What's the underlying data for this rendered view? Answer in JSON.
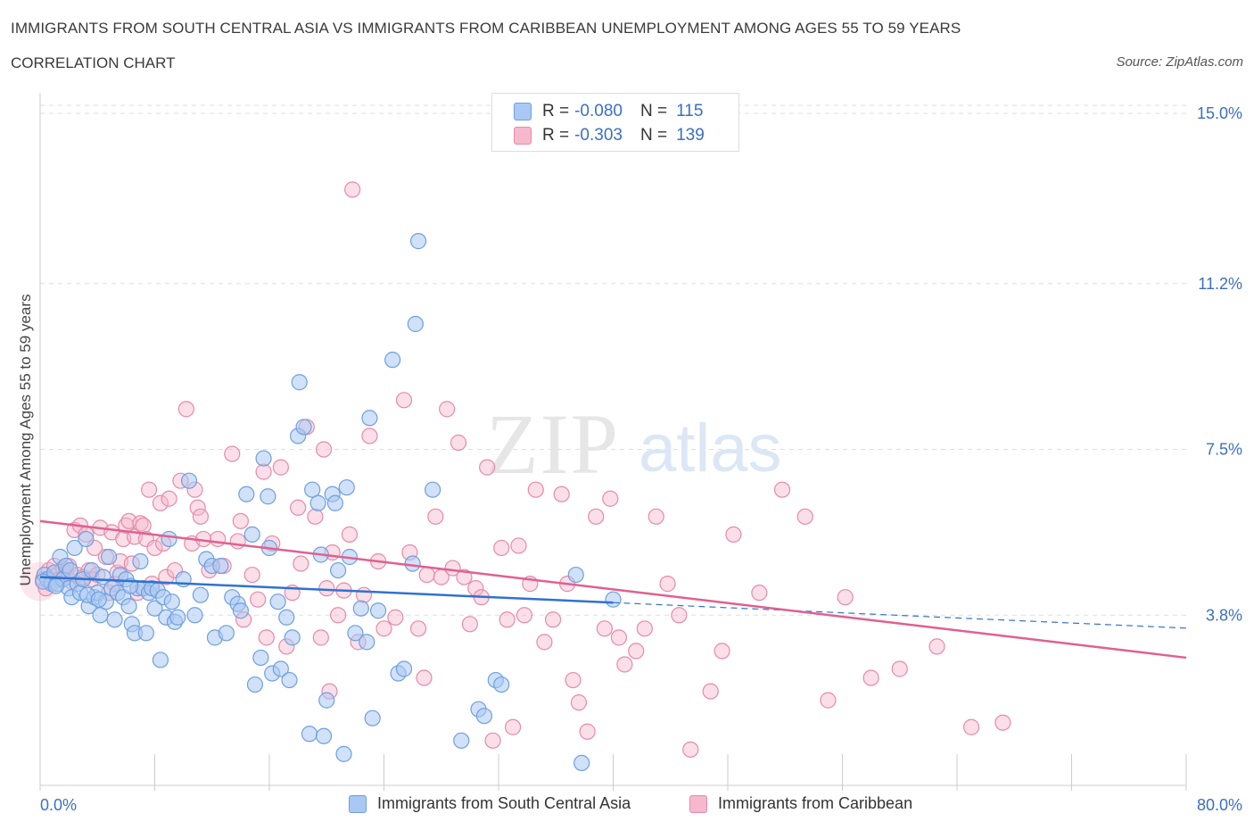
{
  "header": {
    "title": "IMMIGRANTS FROM SOUTH CENTRAL ASIA VS IMMIGRANTS FROM CARIBBEAN UNEMPLOYMENT AMONG AGES 55 TO 59 YEARS",
    "subtitle": "CORRELATION CHART",
    "source": "Source: ZipAtlas.com"
  },
  "stats": [
    {
      "r_label": "R =",
      "r_value": "-0.080",
      "n_label": "N =",
      "n_value": "115"
    },
    {
      "r_label": "R =",
      "r_value": "-0.303",
      "n_label": "N =",
      "n_value": "139"
    }
  ],
  "watermark": {
    "zip": "ZIP",
    "atlas": "atlas"
  },
  "colors": {
    "blue_fill": "#a9c8f3",
    "blue_stroke": "#6f9fe0",
    "blue_line": "#2f72d0",
    "pink_fill": "#f5b8cc",
    "pink_stroke": "#e78aa8",
    "pink_line": "#e0608f",
    "axis_text": "#3a6fc4"
  },
  "chart_data": {
    "type": "scatter",
    "title": "IMMIGRANTS FROM SOUTH CENTRAL ASIA VS IMMIGRANTS FROM CARIBBEAN UNEMPLOYMENT AMONG AGES 55 TO 59 YEARS",
    "xlabel": "",
    "ylabel": "Unemployment Among Ages 55 to 59 years",
    "xlim": [
      0,
      80
    ],
    "ylim": [
      0,
      15.3
    ],
    "x_tick_labels": [
      "0.0%",
      "80.0%"
    ],
    "y_ticks": [
      3.8,
      7.5,
      11.2,
      15.0
    ],
    "y_tick_labels": [
      "3.8%",
      "7.5%",
      "11.2%",
      "15.0%"
    ],
    "grid": true,
    "legend_position": "bottom",
    "series": [
      {
        "name": "Immigrants from South Central Asia",
        "color": "#a9c8f3",
        "trend": {
          "x": [
            0,
            40
          ],
          "y": [
            4.65,
            4.08
          ],
          "dashed_extension": {
            "x": [
              40,
              80
            ],
            "y": [
              4.08,
              3.51
            ]
          }
        },
        "points": [
          [
            0.3,
            4.7
          ],
          [
            0.5,
            4.6
          ],
          [
            0.8,
            4.5
          ],
          [
            1.0,
            4.75
          ],
          [
            1.2,
            4.5
          ],
          [
            1.4,
            5.1
          ],
          [
            1.6,
            4.6
          ],
          [
            1.8,
            4.9
          ],
          [
            2.0,
            4.4
          ],
          [
            2.2,
            4.2
          ],
          [
            2.4,
            5.3
          ],
          [
            2.6,
            4.5
          ],
          [
            2.8,
            4.3
          ],
          [
            3.0,
            4.6
          ],
          [
            3.2,
            5.5
          ],
          [
            3.4,
            4.0
          ],
          [
            3.6,
            4.8
          ],
          [
            3.8,
            4.2
          ],
          [
            4.0,
            4.3
          ],
          [
            4.2,
            3.8
          ],
          [
            4.4,
            4.65
          ],
          [
            4.6,
            4.1
          ],
          [
            4.8,
            5.1
          ],
          [
            5.0,
            4.4
          ],
          [
            5.2,
            3.7
          ],
          [
            5.4,
            4.3
          ],
          [
            5.6,
            4.7
          ],
          [
            5.8,
            4.2
          ],
          [
            6.0,
            4.6
          ],
          [
            6.2,
            4.0
          ],
          [
            6.4,
            3.6
          ],
          [
            6.6,
            3.4
          ],
          [
            6.8,
            4.4
          ],
          [
            7.0,
            5.0
          ],
          [
            7.2,
            4.4
          ],
          [
            7.4,
            3.4
          ],
          [
            7.6,
            4.3
          ],
          [
            7.8,
            4.4
          ],
          [
            8.0,
            3.95
          ],
          [
            8.2,
            4.35
          ],
          [
            8.4,
            2.8
          ],
          [
            8.6,
            4.2
          ],
          [
            8.8,
            3.75
          ],
          [
            9.0,
            5.5
          ],
          [
            9.2,
            4.1
          ],
          [
            9.4,
            3.65
          ],
          [
            9.6,
            3.75
          ],
          [
            10.0,
            4.6
          ],
          [
            10.4,
            6.8
          ],
          [
            10.8,
            3.8
          ],
          [
            11.2,
            4.25
          ],
          [
            11.6,
            5.05
          ],
          [
            12.0,
            4.9
          ],
          [
            12.2,
            3.3
          ],
          [
            12.6,
            4.9
          ],
          [
            13.0,
            3.4
          ],
          [
            13.4,
            4.2
          ],
          [
            13.8,
            4.05
          ],
          [
            14.0,
            3.9
          ],
          [
            14.4,
            6.5
          ],
          [
            14.8,
            5.6
          ],
          [
            15.0,
            2.25
          ],
          [
            15.4,
            2.85
          ],
          [
            15.6,
            7.3
          ],
          [
            15.9,
            6.45
          ],
          [
            16.0,
            5.3
          ],
          [
            16.2,
            2.5
          ],
          [
            16.6,
            4.1
          ],
          [
            16.8,
            2.6
          ],
          [
            17.2,
            3.75
          ],
          [
            17.4,
            2.35
          ],
          [
            17.6,
            3.3
          ],
          [
            18.0,
            7.8
          ],
          [
            18.1,
            9.0
          ],
          [
            18.4,
            8.0
          ],
          [
            18.8,
            1.15
          ],
          [
            19.0,
            6.6
          ],
          [
            19.4,
            6.3
          ],
          [
            19.6,
            5.15
          ],
          [
            19.8,
            1.1
          ],
          [
            20.0,
            1.9
          ],
          [
            20.4,
            6.5
          ],
          [
            20.6,
            6.3
          ],
          [
            20.8,
            4.8
          ],
          [
            21.2,
            0.7
          ],
          [
            21.4,
            6.65
          ],
          [
            21.6,
            5.1
          ],
          [
            22.0,
            3.4
          ],
          [
            22.4,
            3.95
          ],
          [
            22.8,
            3.2
          ],
          [
            23.0,
            8.2
          ],
          [
            23.2,
            1.5
          ],
          [
            23.6,
            3.9
          ],
          [
            24.6,
            9.5
          ],
          [
            25.0,
            2.5
          ],
          [
            25.4,
            2.6
          ],
          [
            26.0,
            4.95
          ],
          [
            26.2,
            10.3
          ],
          [
            26.4,
            12.15
          ],
          [
            27.4,
            6.6
          ],
          [
            29.4,
            1.0
          ],
          [
            30.6,
            1.7
          ],
          [
            31.0,
            1.55
          ],
          [
            31.8,
            2.35
          ],
          [
            32.2,
            2.25
          ],
          [
            37.4,
            4.7
          ],
          [
            37.8,
            0.5
          ],
          [
            40.0,
            4.15
          ],
          [
            0.2,
            4.55
          ],
          [
            1.1,
            4.45
          ],
          [
            2.1,
            4.8
          ],
          [
            3.3,
            4.25
          ],
          [
            4.1,
            4.15
          ],
          [
            6.3,
            4.45
          ]
        ]
      },
      {
        "name": "Immigrants from Caribbean",
        "color": "#f5b8cc",
        "trend": {
          "x": [
            0,
            80
          ],
          "y": [
            5.9,
            2.85
          ]
        },
        "points": [
          [
            0.2,
            4.6
          ],
          [
            0.4,
            4.4
          ],
          [
            0.6,
            4.8
          ],
          [
            0.8,
            4.5
          ],
          [
            1.0,
            4.9
          ],
          [
            1.2,
            4.7
          ],
          [
            1.4,
            4.6
          ],
          [
            1.6,
            4.85
          ],
          [
            1.8,
            4.75
          ],
          [
            2.0,
            4.9
          ],
          [
            2.2,
            4.55
          ],
          [
            2.4,
            5.7
          ],
          [
            2.6,
            4.7
          ],
          [
            2.8,
            5.8
          ],
          [
            3.0,
            4.65
          ],
          [
            3.2,
            5.6
          ],
          [
            3.4,
            4.8
          ],
          [
            3.6,
            4.6
          ],
          [
            3.8,
            5.3
          ],
          [
            4.0,
            4.7
          ],
          [
            4.2,
            5.75
          ],
          [
            4.6,
            5.1
          ],
          [
            4.8,
            4.3
          ],
          [
            5.0,
            5.65
          ],
          [
            5.2,
            4.5
          ],
          [
            5.4,
            4.75
          ],
          [
            5.6,
            5.0
          ],
          [
            5.8,
            5.5
          ],
          [
            6.0,
            5.8
          ],
          [
            6.2,
            5.9
          ],
          [
            6.4,
            4.95
          ],
          [
            6.6,
            5.55
          ],
          [
            6.8,
            4.3
          ],
          [
            7.0,
            5.85
          ],
          [
            7.2,
            5.8
          ],
          [
            7.4,
            5.5
          ],
          [
            7.6,
            6.6
          ],
          [
            7.8,
            4.5
          ],
          [
            8.0,
            5.3
          ],
          [
            8.4,
            6.3
          ],
          [
            8.6,
            5.4
          ],
          [
            8.8,
            4.65
          ],
          [
            9.0,
            6.4
          ],
          [
            9.4,
            4.8
          ],
          [
            9.8,
            6.8
          ],
          [
            10.2,
            8.4
          ],
          [
            10.6,
            5.4
          ],
          [
            10.8,
            6.6
          ],
          [
            11.0,
            6.2
          ],
          [
            11.2,
            6.0
          ],
          [
            11.4,
            5.5
          ],
          [
            11.8,
            4.8
          ],
          [
            12.4,
            5.5
          ],
          [
            12.8,
            4.9
          ],
          [
            13.4,
            7.4
          ],
          [
            13.8,
            5.45
          ],
          [
            14.0,
            5.9
          ],
          [
            14.2,
            3.7
          ],
          [
            14.8,
            4.7
          ],
          [
            15.2,
            4.15
          ],
          [
            15.6,
            7.0
          ],
          [
            15.8,
            3.3
          ],
          [
            16.2,
            5.4
          ],
          [
            16.8,
            7.1
          ],
          [
            17.2,
            3.1
          ],
          [
            17.6,
            4.3
          ],
          [
            18.0,
            6.2
          ],
          [
            18.2,
            4.95
          ],
          [
            18.6,
            8.0
          ],
          [
            19.2,
            6.0
          ],
          [
            19.6,
            3.3
          ],
          [
            19.8,
            7.5
          ],
          [
            20.0,
            4.4
          ],
          [
            20.2,
            2.1
          ],
          [
            20.4,
            5.2
          ],
          [
            20.8,
            3.8
          ],
          [
            21.2,
            4.35
          ],
          [
            21.6,
            5.6
          ],
          [
            22.2,
            3.2
          ],
          [
            22.6,
            4.25
          ],
          [
            23.0,
            7.8
          ],
          [
            23.6,
            5.0
          ],
          [
            24.0,
            3.5
          ],
          [
            24.8,
            3.75
          ],
          [
            25.4,
            8.6
          ],
          [
            25.8,
            5.2
          ],
          [
            26.4,
            3.5
          ],
          [
            26.8,
            2.4
          ],
          [
            27.0,
            4.7
          ],
          [
            27.6,
            6.0
          ],
          [
            28.0,
            4.65
          ],
          [
            28.4,
            8.4
          ],
          [
            28.8,
            4.85
          ],
          [
            29.2,
            7.65
          ],
          [
            29.6,
            4.65
          ],
          [
            30.0,
            3.6
          ],
          [
            30.4,
            4.4
          ],
          [
            30.8,
            4.2
          ],
          [
            31.2,
            7.1
          ],
          [
            31.6,
            1.0
          ],
          [
            32.2,
            5.3
          ],
          [
            32.6,
            3.7
          ],
          [
            33.0,
            1.3
          ],
          [
            33.4,
            5.35
          ],
          [
            33.8,
            3.8
          ],
          [
            34.2,
            4.5
          ],
          [
            34.6,
            6.6
          ],
          [
            35.2,
            3.2
          ],
          [
            35.8,
            3.7
          ],
          [
            36.4,
            6.5
          ],
          [
            36.8,
            4.5
          ],
          [
            37.2,
            2.35
          ],
          [
            37.6,
            1.85
          ],
          [
            38.2,
            1.2
          ],
          [
            38.8,
            6.0
          ],
          [
            39.4,
            3.5
          ],
          [
            39.8,
            6.4
          ],
          [
            40.4,
            3.3
          ],
          [
            40.8,
            2.7
          ],
          [
            41.6,
            3.0
          ],
          [
            42.2,
            3.5
          ],
          [
            43.0,
            6.0
          ],
          [
            43.8,
            4.5
          ],
          [
            44.6,
            3.8
          ],
          [
            45.4,
            0.8
          ],
          [
            46.8,
            2.1
          ],
          [
            47.6,
            3.0
          ],
          [
            48.4,
            5.6
          ],
          [
            50.2,
            4.3
          ],
          [
            51.8,
            6.6
          ],
          [
            53.4,
            6.0
          ],
          [
            55.0,
            1.9
          ],
          [
            56.2,
            4.2
          ],
          [
            58.0,
            2.4
          ],
          [
            60.0,
            2.6
          ],
          [
            62.6,
            3.1
          ],
          [
            65.0,
            1.3
          ],
          [
            67.2,
            1.4
          ],
          [
            21.8,
            13.3
          ]
        ]
      }
    ]
  },
  "legend": [
    {
      "label": "Immigrants from South Central Asia"
    },
    {
      "label": "Immigrants from Caribbean"
    }
  ]
}
